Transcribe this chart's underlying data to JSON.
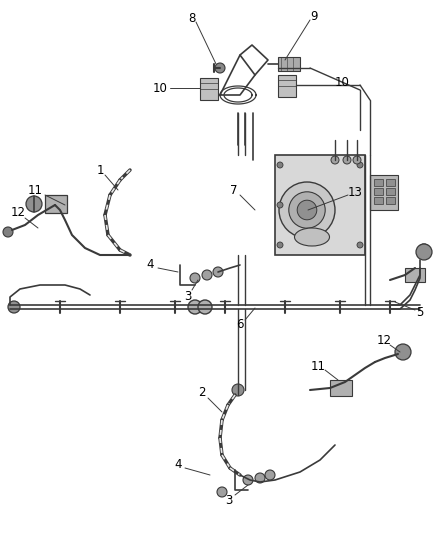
{
  "background_color": "#ffffff",
  "line_color": "#3a3a3a",
  "label_color": "#000000",
  "label_fontsize": 8.5,
  "fig_width": 4.38,
  "fig_height": 5.33,
  "dpi": 100
}
